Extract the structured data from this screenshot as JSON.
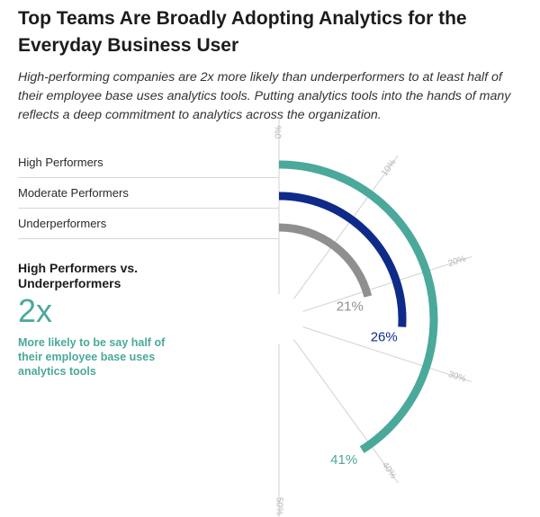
{
  "title": "Top Teams Are Broadly Adopting Analytics for the Everyday Business User",
  "subtitle": "High-performing companies are 2x more likely than underperformers to at least half of their employee base uses analytics tools. Putting analytics tools into the hands of many reflects a deep commitment to analytics across the organization.",
  "comparison": {
    "title": "High Performers vs. Underperformers",
    "value": "2x",
    "description": "More likely to be say half of their employee base uses analytics tools"
  },
  "chart_data": {
    "type": "radial-bar",
    "range": [
      0,
      50
    ],
    "ticks": [
      "0%",
      "10%",
      "20%",
      "30%",
      "40%",
      "50%"
    ],
    "series": [
      {
        "name": "High Performers",
        "value": 41,
        "label": "41%",
        "color": "#4aa99a"
      },
      {
        "name": "Moderate Performers",
        "value": 26,
        "label": "26%",
        "color": "#0f2b8a"
      },
      {
        "name": "Underperformers",
        "value": 21,
        "label": "21%",
        "color": "#8f8f8f"
      }
    ]
  }
}
